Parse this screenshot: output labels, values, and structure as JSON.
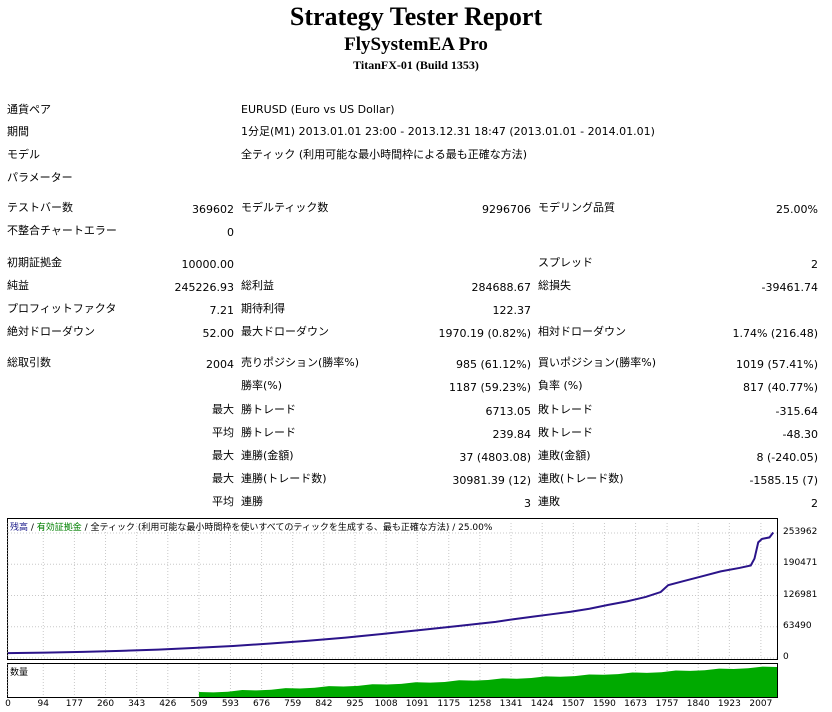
{
  "header": {
    "title": "Strategy Tester Report",
    "ea_name": "FlySystemEA Pro",
    "server": "TitanFX-01 (Build 1353)"
  },
  "info": {
    "pair_label": "通貨ペア",
    "pair_value": "EURUSD (Euro vs US Dollar)",
    "period_label": "期間",
    "period_value": "1分足(M1) 2013.01.01 23:00 - 2013.12.31 18:47 (2013.01.01 - 2014.01.01)",
    "model_label": "モデル",
    "model_value": "全ティック (利用可能な最小時間枠による最も正確な方法)",
    "params_label": "パラメーター"
  },
  "stats": {
    "bars_label": "テストバー数",
    "bars_value": "369602",
    "ticks_label": "モデルティック数",
    "ticks_value": "9296706",
    "quality_label": "モデリング品質",
    "quality_value": "25.00%",
    "mismatch_label": "不整合チャートエラー",
    "mismatch_value": "0",
    "deposit_label": "初期証拠金",
    "deposit_value": "10000.00",
    "spread_label": "スプレッド",
    "spread_value": "2",
    "net_label": "純益",
    "net_value": "245226.93",
    "gross_profit_label": "総利益",
    "gross_profit_value": "284688.67",
    "gross_loss_label": "総損失",
    "gross_loss_value": "-39461.74",
    "pf_label": "プロフィットファクタ",
    "pf_value": "7.21",
    "payoff_label": "期待利得",
    "payoff_value": "122.37",
    "abs_dd_label": "絶対ドローダウン",
    "abs_dd_value": "52.00",
    "max_dd_label": "最大ドローダウン",
    "max_dd_value": "1970.19 (0.82%)",
    "rel_dd_label": "相対ドローダウン",
    "rel_dd_value": "1.74% (216.48)",
    "trades_label": "総取引数",
    "trades_value": "2004",
    "short_label": "売りポジション(勝率%)",
    "short_value": "985 (61.12%)",
    "long_label": "買いポジション(勝率%)",
    "long_value": "1019 (57.41%)",
    "win_label": "勝率(%)",
    "win_value": "1187 (59.23%)",
    "loss_label": "負率 (%)",
    "loss_value": "817 (40.77%)",
    "max_prefix": "最大",
    "avg_prefix": "平均",
    "best_trade_label": "勝トレード",
    "best_trade_value": "6713.05",
    "worst_trade_label": "敗トレード",
    "worst_trade_value": "-315.64",
    "avg_win_label": "勝トレード",
    "avg_win_value": "239.84",
    "avg_loss_label": "敗トレード",
    "avg_loss_value": "-48.30",
    "cons_wins_label": "連勝(金額)",
    "cons_wins_value": "37 (4803.08)",
    "cons_losses_label": "連敗(金額)",
    "cons_losses_value": "8 (-240.05)",
    "cons_profit_label": "連勝(トレード数)",
    "cons_profit_value": "30981.39 (12)",
    "cons_loss_label": "連敗(トレード数)",
    "cons_loss_value": "-1585.15 (7)",
    "avg_cons_wins_label": "連勝",
    "avg_cons_wins_value": "3",
    "avg_cons_losses_label": "連敗",
    "avg_cons_losses_value": "2"
  },
  "chart_legend": {
    "balance": "残高",
    "sep1": " / ",
    "equity": "有効証拠金",
    "rest": " / 全ティック (利用可能な最小時間枠を使いすべてのティックを生成する、最も正確な方法) / 25.00%"
  },
  "chart_data": {
    "type": "line",
    "title": "",
    "xlabel": "",
    "ylabel": "",
    "x_ticks": [
      0,
      94,
      177,
      260,
      343,
      426,
      509,
      593,
      676,
      759,
      842,
      925,
      1008,
      1091,
      1175,
      1258,
      1341,
      1424,
      1507,
      1590,
      1673,
      1757,
      1840,
      1923,
      2007
    ],
    "y_ticks": [
      0,
      63490,
      126981,
      190471,
      253962
    ],
    "xlim": [
      0,
      2050
    ],
    "ylim": [
      0,
      253962
    ],
    "series": [
      {
        "color": "#2b148a",
        "x": [
          0,
          100,
          200,
          300,
          400,
          500,
          600,
          700,
          800,
          900,
          1000,
          1100,
          1200,
          1300,
          1350,
          1400,
          1450,
          1500,
          1550,
          1600,
          1650,
          1700,
          1740,
          1760,
          1800,
          1850,
          1900,
          1950,
          1980,
          1990,
          2000,
          2010,
          2030,
          2040
        ],
        "y": [
          10000,
          11000,
          12500,
          14500,
          17000,
          20500,
          24500,
          29500,
          35000,
          41500,
          49000,
          57000,
          65000,
          73500,
          79000,
          84000,
          89000,
          94000,
          100000,
          108000,
          115000,
          124000,
          134000,
          148000,
          156000,
          166000,
          176000,
          183000,
          188000,
          202000,
          235000,
          242000,
          245000,
          255000
        ]
      }
    ],
    "volume_label": "数量",
    "volume_color": "#00aa00",
    "volume_start": 509,
    "grid": true
  }
}
